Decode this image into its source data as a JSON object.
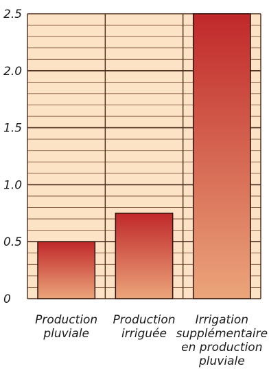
{
  "chart_data": {
    "type": "bar",
    "title": "",
    "xlabel": "",
    "ylabel": "",
    "categories": [
      [
        "Production",
        "pluviale"
      ],
      [
        "Production",
        "irriguée"
      ],
      [
        "Irrigation",
        "supplémentaire",
        "en production",
        "pluviale"
      ]
    ],
    "values": [
      0.5,
      0.75,
      2.5
    ],
    "ylim": [
      0,
      2.5
    ],
    "yticks": [
      0,
      0.5,
      1.0,
      1.5,
      2.0,
      2.5
    ],
    "ytick_labels": [
      "0",
      "0.5",
      "1.0",
      "1.5",
      "2.0",
      "2.5"
    ],
    "minor_grid_step": 0.1,
    "grid": true,
    "colors": {
      "background": "#fde3c6",
      "grid_major": "#4a2a1a",
      "grid_minor": "#6b3a22",
      "bar_top": "#c0282a",
      "bar_bottom": "#eba57a",
      "bar_outline": "#2a1208",
      "text": "#1a1a1a"
    }
  }
}
